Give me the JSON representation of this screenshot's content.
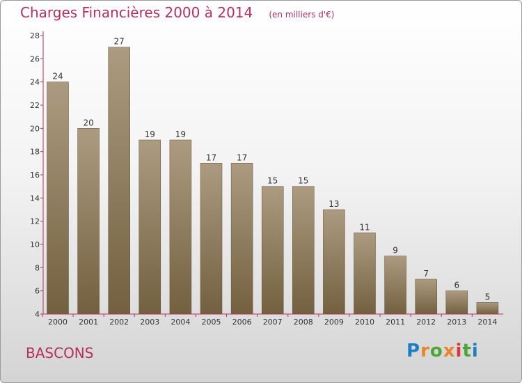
{
  "header": {
    "title": "Charges Financières 2000 à 2014",
    "subtitle": "(en milliers d'€)"
  },
  "footer": {
    "town": "BASCONS",
    "logo_text": "Proxiti"
  },
  "colors": {
    "title": "#b5305b",
    "bar_top": "#ac9b80",
    "bar_bottom": "#72603f",
    "axis": "#b5305b"
  },
  "chart_data": {
    "type": "bar",
    "title": "Charges Financières 2000 à 2014",
    "subtitle": "(en milliers d'€)",
    "categories": [
      "2000",
      "2001",
      "2002",
      "2003",
      "2004",
      "2005",
      "2006",
      "2007",
      "2008",
      "2009",
      "2010",
      "2011",
      "2012",
      "2013",
      "2014"
    ],
    "values": [
      24,
      20,
      27,
      19,
      19,
      17,
      17,
      15,
      15,
      13,
      11,
      9,
      7,
      6,
      5
    ],
    "ylim": [
      4,
      28
    ],
    "yticks": [
      4,
      6,
      8,
      10,
      12,
      14,
      16,
      18,
      20,
      22,
      24,
      26,
      28
    ],
    "xlabel": "",
    "ylabel": "",
    "grid": false,
    "legend": "none"
  }
}
